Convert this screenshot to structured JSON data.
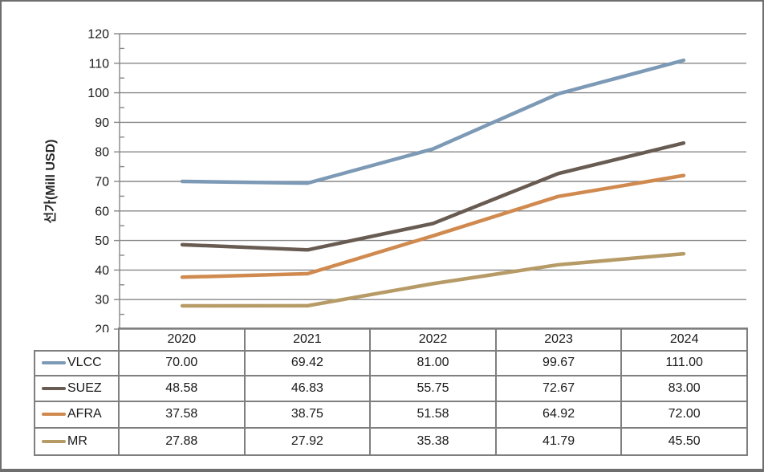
{
  "chart_data": {
    "type": "line",
    "title": "",
    "xlabel": "",
    "ylabel": "선가(Mill USD)",
    "categories": [
      "2020",
      "2021",
      "2022",
      "2023",
      "2024"
    ],
    "series": [
      {
        "name": "VLCC",
        "color": "#7c99b5",
        "values": [
          "70.00",
          "69.42",
          "81.00",
          "99.67",
          "111.00"
        ]
      },
      {
        "name": "SUEZ",
        "color": "#685b52",
        "values": [
          "48.58",
          "46.83",
          "55.75",
          "72.67",
          "83.00"
        ]
      },
      {
        "name": "AFRA",
        "color": "#d08a4f",
        "values": [
          "37.58",
          "38.75",
          "51.58",
          "64.92",
          "72.00"
        ]
      },
      {
        "name": "MR",
        "color": "#b69b66",
        "values": [
          "27.88",
          "27.92",
          "35.38",
          "41.79",
          "45.50"
        ]
      }
    ],
    "ylim": [
      20,
      120
    ],
    "yticks": [
      120,
      110,
      100,
      90,
      80,
      70,
      60,
      50,
      40,
      30,
      20
    ],
    "ytick_minor_step": 5,
    "grid": true,
    "legend_position": "table-left"
  },
  "colors": {
    "gridline": "#878787",
    "axis": "#878787",
    "table_border": "#7f7f7f",
    "outer_border": "#6e6e6e",
    "text": "#1a1a1a"
  }
}
